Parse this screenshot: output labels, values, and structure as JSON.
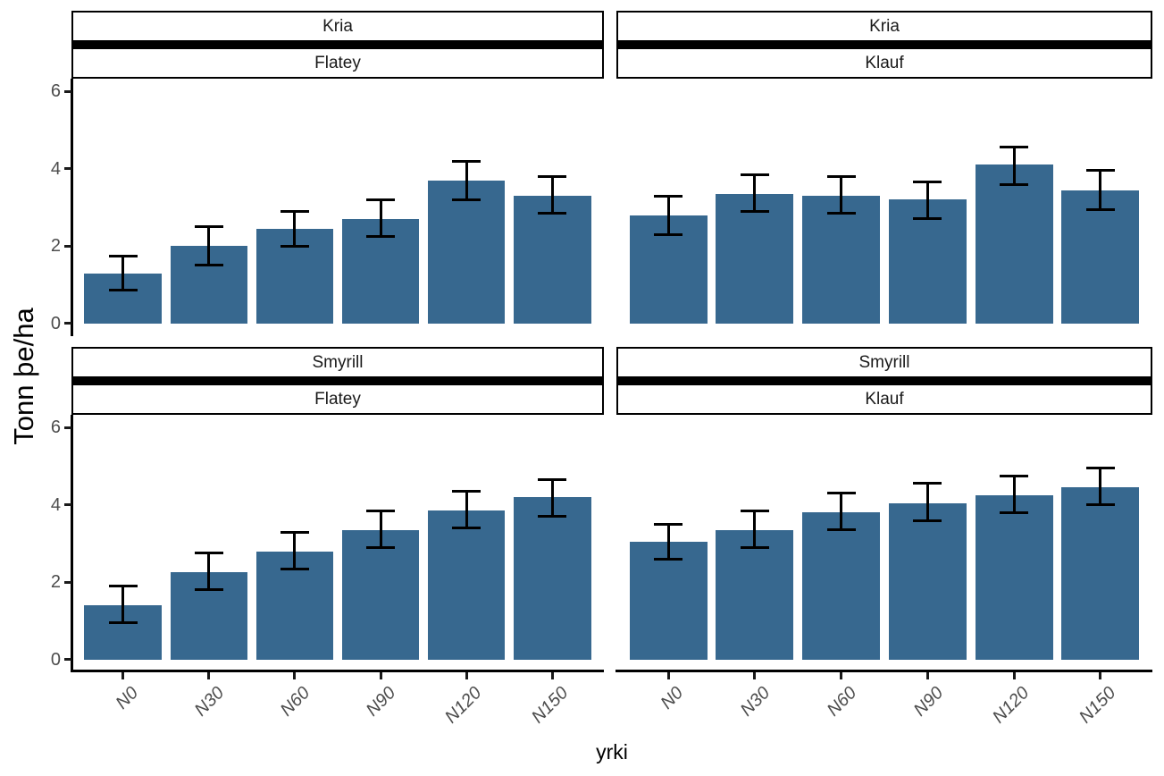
{
  "chart_data": {
    "type": "bar",
    "title": "",
    "xlabel": "yrki",
    "ylabel": "Tonn þe/ha",
    "categories": [
      "N0",
      "N30",
      "N60",
      "N90",
      "N120",
      "N150"
    ],
    "yticks": [
      0,
      2,
      4,
      6
    ],
    "ylim": [
      0,
      6.33
    ],
    "grid": "off",
    "legend": "none",
    "bar_color": "#37688F",
    "errorbar_color": "#000000",
    "axis_text_color": "#4d4d4d",
    "facet_row_labels": [
      "Kria",
      "Smyrill"
    ],
    "facet_col_labels": [
      "Flatey",
      "Klauf"
    ],
    "panels": [
      {
        "id": "kria-flatey",
        "strip_top": "Kria",
        "strip_bottom": "Flatey",
        "values": [
          1.3,
          2.0,
          2.45,
          2.7,
          3.7,
          3.3
        ],
        "err_high": [
          1.75,
          2.5,
          2.9,
          3.2,
          4.2,
          3.8
        ],
        "err_low": [
          0.85,
          1.5,
          2.0,
          2.25,
          3.2,
          2.85
        ]
      },
      {
        "id": "kria-klauf",
        "strip_top": "Kria",
        "strip_bottom": "Klauf",
        "values": [
          2.8,
          3.35,
          3.3,
          3.2,
          4.1,
          3.45
        ],
        "err_high": [
          3.3,
          3.85,
          3.8,
          3.65,
          4.55,
          3.95
        ],
        "err_low": [
          2.3,
          2.9,
          2.85,
          2.7,
          3.6,
          2.95
        ]
      },
      {
        "id": "smyrill-flatey",
        "strip_top": "Smyrill",
        "strip_bottom": "Flatey",
        "values": [
          1.4,
          2.25,
          2.8,
          3.35,
          3.85,
          4.2
        ],
        "err_high": [
          1.9,
          2.75,
          3.3,
          3.85,
          4.35,
          4.65
        ],
        "err_low": [
          0.95,
          1.8,
          2.35,
          2.9,
          3.4,
          3.7
        ]
      },
      {
        "id": "smyrill-klauf",
        "strip_top": "Smyrill",
        "strip_bottom": "Klauf",
        "values": [
          3.05,
          3.35,
          3.8,
          4.05,
          4.25,
          4.45
        ],
        "err_high": [
          3.5,
          3.85,
          4.3,
          4.55,
          4.75,
          4.95
        ],
        "err_low": [
          2.6,
          2.9,
          3.35,
          3.6,
          3.8,
          4.0
        ]
      }
    ]
  }
}
